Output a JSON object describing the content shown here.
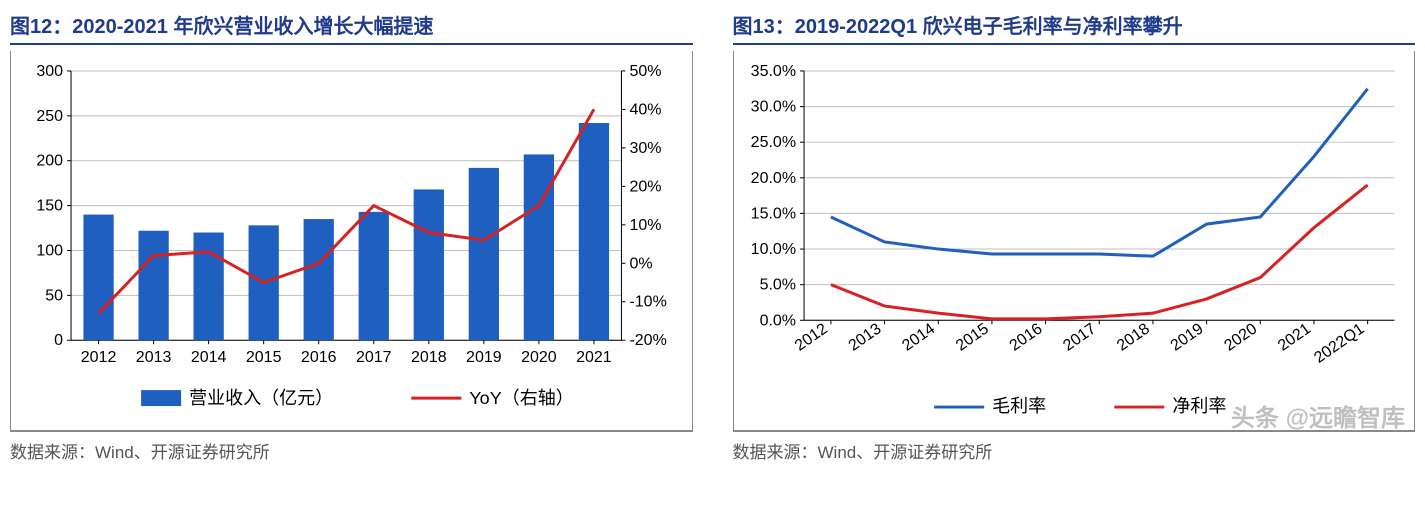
{
  "left": {
    "title": "图12：2020-2021 年欣兴营业收入增长大幅提速",
    "source": "数据来源：Wind、开源证券研究所",
    "chart": {
      "type": "bar+line",
      "categories": [
        "2012",
        "2013",
        "2014",
        "2015",
        "2016",
        "2017",
        "2018",
        "2019",
        "2020",
        "2021"
      ],
      "bar_values": [
        140,
        122,
        120,
        128,
        135,
        143,
        168,
        192,
        207,
        242
      ],
      "line_values": [
        -13,
        2,
        3,
        -5,
        0,
        15,
        8,
        6,
        15,
        40
      ],
      "bar_color": "#1f5fbf",
      "line_color": "#d62222",
      "y1_range": [
        0,
        300
      ],
      "y1_step": 50,
      "y2_range": [
        -20,
        50
      ],
      "y2_step": 10,
      "y2_suffix": "%",
      "bar_width": 0.55,
      "line_width": 3,
      "grid_color": "#bfbfbf",
      "axis_color": "#000000",
      "background": "#ffffff",
      "font_size_tick": 16,
      "font_size_legend": 18,
      "legend": {
        "bar_label": "营业收入（亿元）",
        "line_label": "YoY（右轴）"
      }
    }
  },
  "right": {
    "title": "图13：2019-2022Q1 欣兴电子毛利率与净利率攀升",
    "source": "数据来源：Wind、开源证券研究所",
    "chart": {
      "type": "line",
      "categories": [
        "2012",
        "2013",
        "2014",
        "2015",
        "2016",
        "2017",
        "2018",
        "2019",
        "2020",
        "2021",
        "2022Q1"
      ],
      "series": [
        {
          "name": "毛利率",
          "color": "#1f5fbf",
          "values": [
            14.5,
            11.0,
            10.0,
            9.3,
            9.3,
            9.3,
            9.0,
            13.5,
            14.5,
            23.0,
            32.5
          ]
        },
        {
          "name": "净利率",
          "color": "#d62222",
          "values": [
            5.0,
            2.0,
            1.0,
            0.2,
            0.2,
            0.5,
            1.0,
            3.0,
            6.0,
            13.0,
            19.0
          ]
        }
      ],
      "y_range": [
        0,
        35
      ],
      "y_step": 5,
      "y_suffix": ".0%",
      "line_width": 3,
      "grid_color": "#bfbfbf",
      "axis_color": "#000000",
      "background": "#ffffff",
      "font_size_tick": 16,
      "font_size_legend": 18,
      "x_label_rotate": -35
    }
  },
  "watermark": "头条 @远瞻智库"
}
